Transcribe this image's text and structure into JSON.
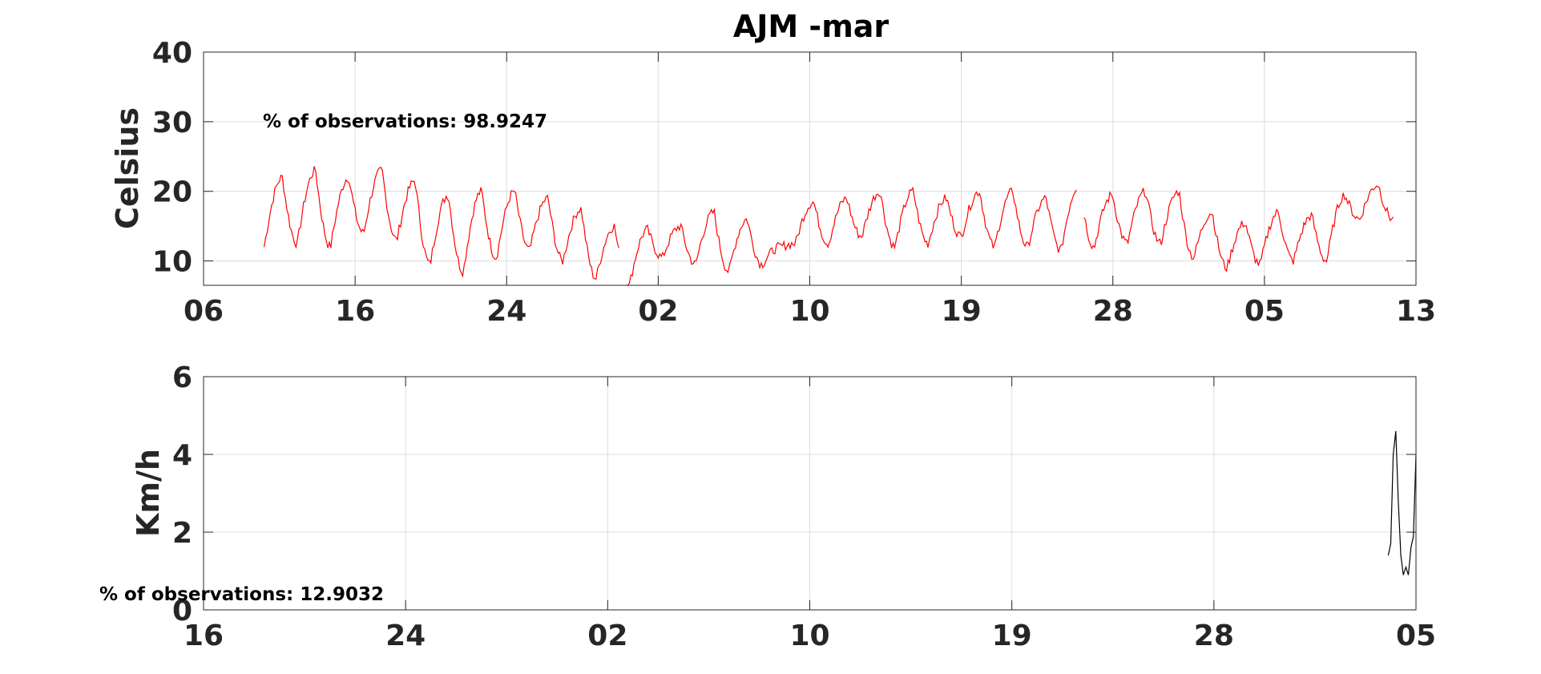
{
  "chart_data": [
    {
      "type": "line",
      "title": "AJM -mar",
      "ylabel": "Celsius",
      "xlabel": "",
      "ylim": [
        6.5,
        40
      ],
      "yticks": [
        10,
        20,
        30,
        40
      ],
      "xticks": [
        "06",
        "16",
        "24",
        "02",
        "10",
        "19",
        "28",
        "05",
        "13"
      ],
      "xlim_days": [
        0,
        80
      ],
      "annotation": "% of observations: 98.9247",
      "grid": true,
      "series": [
        {
          "color": "#ff0000",
          "daily_max": [
            22,
            23,
            22,
            23,
            21.5,
            19.5,
            20,
            20,
            19,
            17.5,
            15,
            14.5,
            15,
            17,
            16,
            12,
            18.5,
            19,
            20,
            20,
            19,
            20,
            20,
            19,
            21,
            19.5,
            20,
            20,
            17,
            15.5,
            17,
            16.5,
            19.5,
            21
          ],
          "daily_min": [
            12,
            12.5,
            12,
            14,
            13,
            9.5,
            8.5,
            10.5,
            11.5,
            10,
            7.5,
            6.5,
            10.5,
            9.5,
            8.5,
            9.5,
            12.5,
            12.5,
            13.5,
            12,
            12.5,
            13.5,
            12,
            12,
            11.5,
            12,
            12.5,
            12.5,
            10.5,
            9,
            9.5,
            10,
            10,
            16
          ],
          "start_day": 4,
          "end_day": 78.5,
          "gaps_days": [
            [
              27.5,
              27.9
            ],
            [
              57.7,
              58.1
            ]
          ]
        }
      ]
    },
    {
      "type": "line",
      "ylabel": "Km/h",
      "xlabel": "",
      "ylim": [
        0,
        6
      ],
      "yticks": [
        0,
        2,
        4,
        6
      ],
      "xticks": [
        "16",
        "24",
        "02",
        "10",
        "19",
        "28",
        "05"
      ],
      "xlim_days": [
        0,
        48
      ],
      "annotation": "% of observations: 12.9032",
      "grid": true,
      "series": [
        {
          "color": "#000000",
          "x_days": [
            46.9,
            47.0,
            47.1,
            47.2,
            47.3,
            47.4,
            47.5,
            47.6,
            47.7,
            47.8,
            47.9,
            48.0
          ],
          "values": [
            1.4,
            1.7,
            4.0,
            4.6,
            2.8,
            1.4,
            0.9,
            1.1,
            0.9,
            1.6,
            1.9,
            4.0
          ]
        }
      ]
    }
  ]
}
